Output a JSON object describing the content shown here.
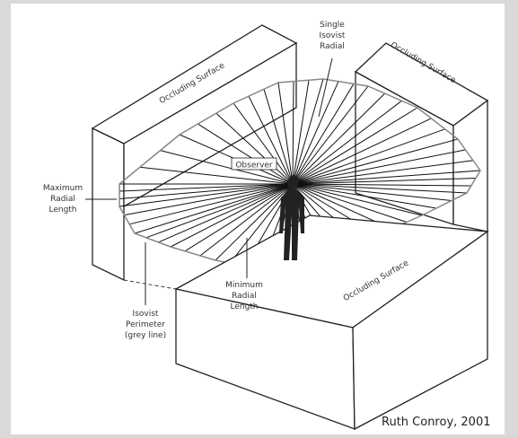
{
  "labels": {
    "occluding_left": "Occluding Surface",
    "occluding_right": "Occluding Surface",
    "occluding_bottom": "Occluding Surface",
    "single_radial": [
      "Single",
      "Isovist",
      "Radial"
    ],
    "observer": "Observer",
    "maximum": [
      "Maximum",
      "Radial",
      "Length"
    ],
    "minimum": [
      "Minimum",
      "Radial",
      "Length"
    ],
    "perimeter": [
      "Isovist",
      "Perimeter",
      "(grey line)"
    ],
    "credit": "Ruth Conroy, 2001"
  }
}
